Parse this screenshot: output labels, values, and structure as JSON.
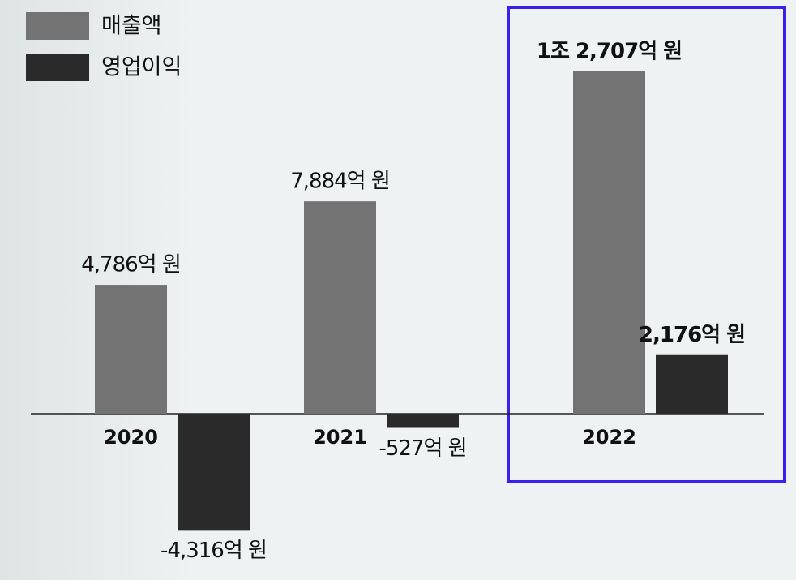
{
  "chart_data": {
    "type": "bar",
    "categories": [
      "2020",
      "2021",
      "2022"
    ],
    "series": [
      {
        "name": "매출액",
        "color": "#737373",
        "values": [
          4786,
          7884,
          12707
        ],
        "value_labels": [
          "4,786억 원",
          "7,884억 원",
          "1조 2,707억 원"
        ]
      },
      {
        "name": "영업이익",
        "color": "#2a2a2a",
        "values": [
          -4316,
          -527,
          2176
        ],
        "value_labels": [
          "-4,316억 원",
          "-527억 원",
          "2,176억 원"
        ]
      }
    ]
  }
}
